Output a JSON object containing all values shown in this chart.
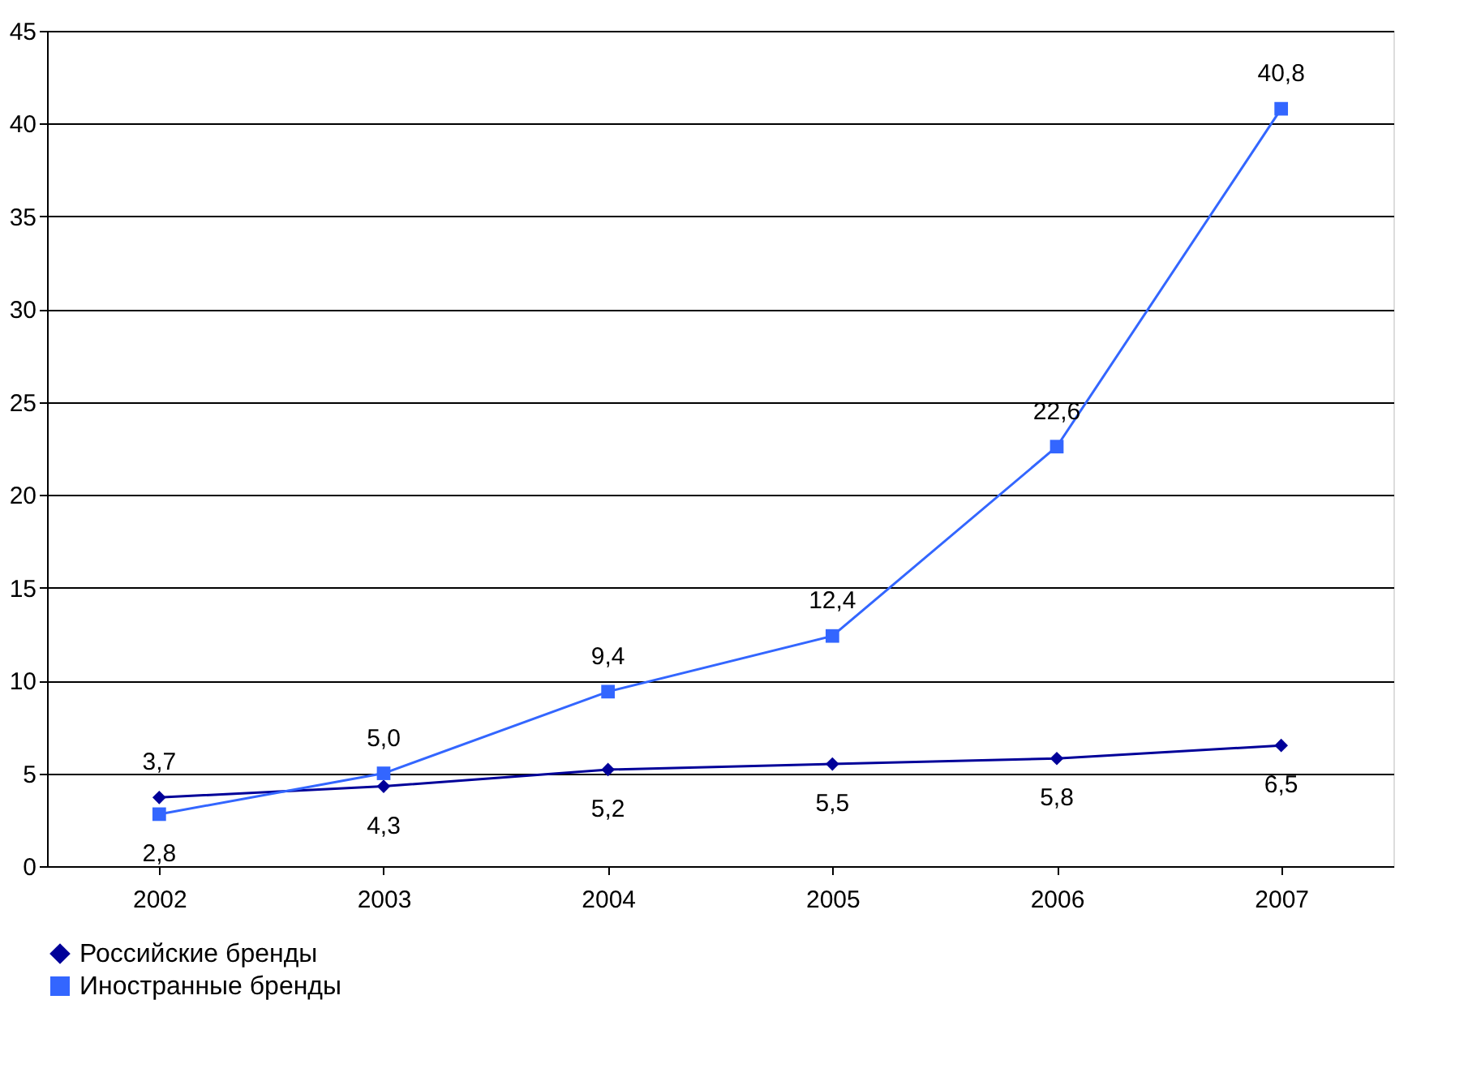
{
  "chart_data": {
    "type": "line",
    "categories": [
      "2002",
      "2003",
      "2004",
      "2005",
      "2006",
      "2007"
    ],
    "series": [
      {
        "name": "Российские бренды",
        "color": "#000099",
        "marker": "diamond",
        "values": [
          3.7,
          4.3,
          5.2,
          5.5,
          5.8,
          6.5
        ],
        "value_labels": [
          "3,7",
          "4,3",
          "5,2",
          "5,5",
          "5,8",
          "6,5"
        ]
      },
      {
        "name": "Иностранные бренды",
        "color": "#3366ff",
        "marker": "square",
        "values": [
          2.8,
          5.0,
          9.4,
          12.4,
          22.6,
          40.8
        ],
        "value_labels": [
          "2,8",
          "5,0",
          "9,4",
          "12,4",
          "22,6",
          "40,8"
        ]
      }
    ],
    "ylim": [
      0,
      45
    ],
    "yticks": [
      0,
      5,
      10,
      15,
      20,
      25,
      30,
      35,
      40,
      45
    ],
    "grid": "y",
    "legend": "bottom",
    "line_style": "solid"
  }
}
